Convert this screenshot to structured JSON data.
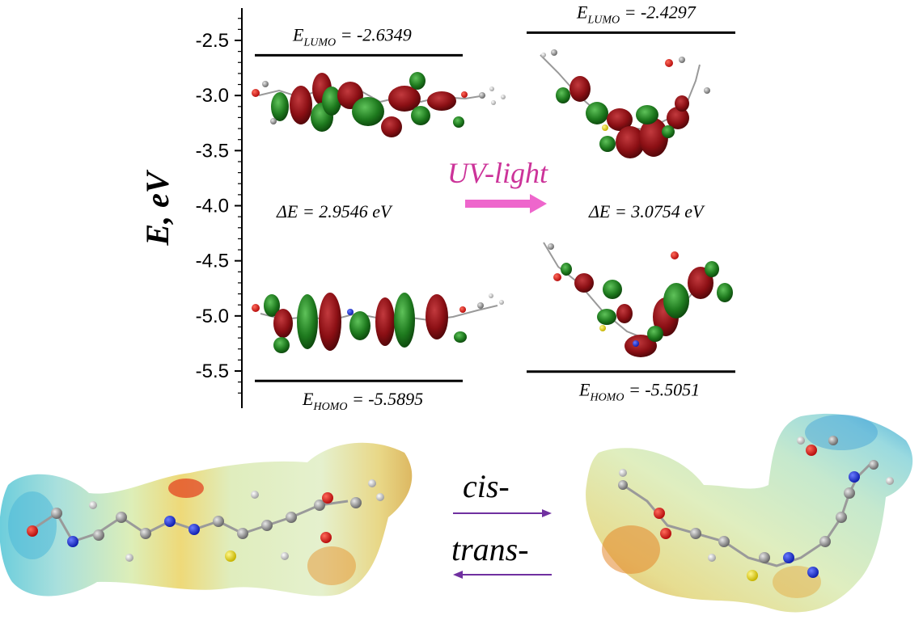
{
  "chart_data": {
    "type": "energy-level-diagram",
    "ylabel": "E, eV",
    "y_ticks": [
      "-2.5",
      "-3.0",
      "-3.5",
      "-4.0",
      "-4.5",
      "-5.0",
      "-5.5"
    ],
    "ylim": [
      -5.7,
      -2.2
    ],
    "levels": [
      {
        "state": "left",
        "orbital": "LUMO",
        "prefix": "E",
        "sub": "LUMO",
        "value_text": " = -2.6349",
        "value": -2.6349
      },
      {
        "state": "left",
        "orbital": "HOMO",
        "prefix": "E",
        "sub": "HOMO",
        "value_text": " = -5.5895",
        "value": -5.5895
      },
      {
        "state": "right",
        "orbital": "LUMO",
        "prefix": "E",
        "sub": "LUMO",
        "value_text": " = -2.4297",
        "value": -2.4297
      },
      {
        "state": "right",
        "orbital": "HOMO",
        "prefix": "E",
        "sub": "HOMO",
        "value_text": " = -5.5051",
        "value": -5.5051
      }
    ],
    "gaps": {
      "left": "ΔE = 2.9546 eV",
      "right": "ΔE = 3.0754 eV"
    }
  },
  "transition": {
    "label": "UV-light",
    "arrow_color": "#ee66cc"
  },
  "isomers": {
    "top_label": "cis-",
    "bottom_label": "trans-",
    "arrow_color": "#7030a0"
  },
  "colors": {
    "orbital_red": "#8b0f14",
    "orbital_green": "#1e7a1e",
    "surface_cyan": "#a9e6e8",
    "surface_yellow": "#e9ea9a",
    "surface_orange": "#e8902a"
  }
}
